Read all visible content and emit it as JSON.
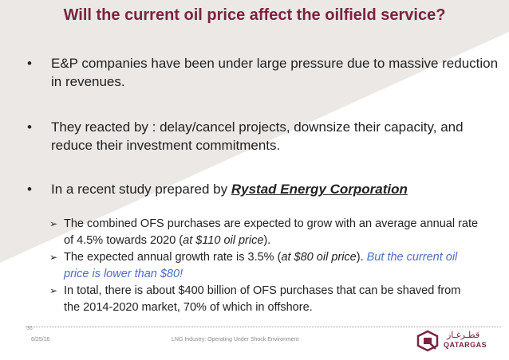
{
  "slide": {
    "title": "Will the current oil price affect the oilfield service?",
    "bullets": [
      "E&P companies have been under large pressure due to massive reduction in revenues.",
      "They reacted by : delay/cancel projects, downsize their capacity, and reduce their investment commitments."
    ],
    "study_intro": "In a recent study prepared by ",
    "study_source": "Rystad Energy Corporation",
    "sub_bullets": {
      "item1": "The combined OFS purchases are expected to grow with an average annual rate of 4.5% towards 2020 (",
      "item1_italic": "at $110 oil price",
      "item1_end": ").",
      "item2": "The expected annual growth rate is 3.5% (",
      "item2_italic": "at $80 oil price",
      "item2_mid": "). ",
      "item2_blue": "But the current oil price is lower than $80!",
      "item3": "In total, there is about $400 billion of OFS purchases that can be shaved from the 2014-2020 market, 70% of which in offshore."
    }
  },
  "footer": {
    "slide_number": "36",
    "date": "6/25/16",
    "center_text": "LNG Industry: Operating Under Shock Environment",
    "logo_arabic": "قطـرغـاز",
    "logo_text": "QATARGAS"
  },
  "colors": {
    "title": "#7b2340",
    "accent_blue": "#4a6fc4",
    "background_shape": "#ebe8e6"
  }
}
